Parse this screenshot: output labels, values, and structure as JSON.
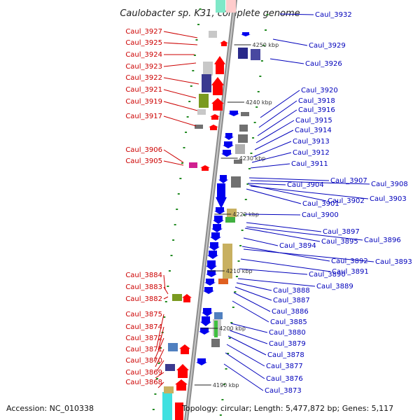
{
  "title": "Caulobacter sp. K31, complete genome",
  "accession": "Accession: NC_010338",
  "topology": "Topology: circular; Length: 5,477,872 bp; Genes: 5,117",
  "colors": {
    "forward": "#ff0000",
    "reverse": "#0000ee",
    "left_label": "#cc0000",
    "right_label": "#0000bb",
    "axis": "#888888",
    "tick": "#228b22"
  },
  "kbp_markers": [
    "4250 kbp",
    "4240 kbp",
    "4230 kbp",
    "4220 kbp",
    "4210 kbp",
    "4200 kbp",
    "4190 kbp"
  ],
  "left_genes": [
    "Caul_3927",
    "Caul_3925",
    "Caul_3924",
    "Caul_3923",
    "Caul_3922",
    "Caul_3921",
    "Caul_3919",
    "Caul_3917",
    "Caul_3906",
    "Caul_3905",
    "Caul_3884",
    "Caul_3883",
    "Caul_3882",
    "Caul_3875",
    "Caul_3874",
    "Caul_3872",
    "Caul_3871",
    "Caul_3870",
    "Caul_3869",
    "Caul_3868"
  ],
  "right_genes": [
    "Caul_3932",
    "Caul_3929",
    "Caul_3926",
    "Caul_3920",
    "Caul_3918",
    "Caul_3916",
    "Caul_3915",
    "Caul_3914",
    "Caul_3913",
    "Caul_3912",
    "Caul_3911",
    "Caul_3907",
    "Caul_3908",
    "Caul_3904",
    "Caul_3901",
    "Caul_3902",
    "Caul_3903",
    "Caul_3900",
    "Caul_3897",
    "Caul_3895",
    "Caul_3896",
    "Caul_3894",
    "Caul_3892",
    "Caul_3893",
    "Caul_3891",
    "Caul_3890",
    "Caul_3889",
    "Caul_3888",
    "Caul_3887",
    "Caul_3886",
    "Caul_3885",
    "Caul_3880",
    "Caul_3879",
    "Caul_3878",
    "Caul_3877",
    "Caul_3876",
    "Caul_3873"
  ]
}
